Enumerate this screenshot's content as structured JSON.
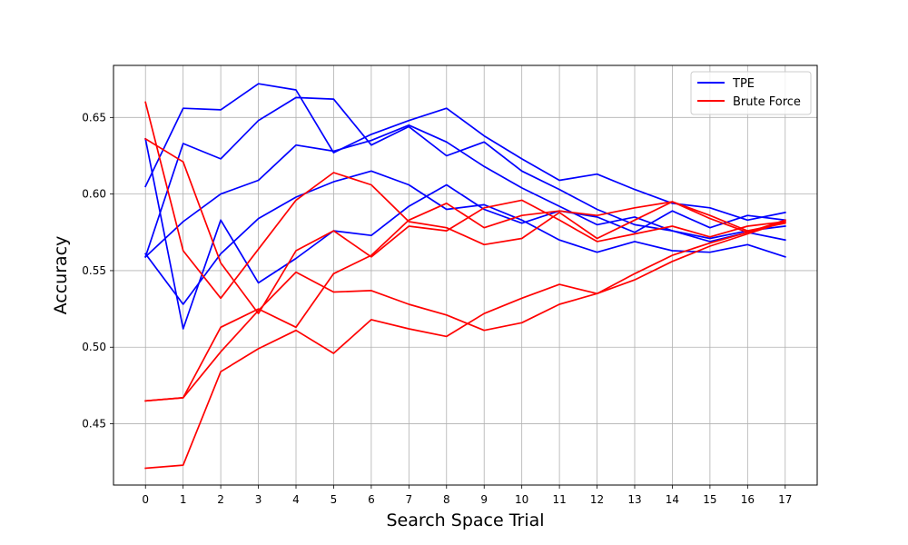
{
  "chart_data": {
    "type": "line",
    "xlabel": "Search Space Trial",
    "ylabel": "Accuracy",
    "x": [
      0,
      1,
      2,
      3,
      4,
      5,
      6,
      7,
      8,
      9,
      10,
      11,
      12,
      13,
      14,
      15,
      16,
      17
    ],
    "xlim": [
      -0.85,
      17.85
    ],
    "ylim": [
      0.41,
      0.684
    ],
    "yticks": [
      0.45,
      0.5,
      0.55,
      0.6,
      0.65
    ],
    "yticklabels": [
      "0.45",
      "0.50",
      "0.55",
      "0.60",
      "0.65"
    ],
    "grid": true,
    "legend_position": "top-right",
    "legend": [
      {
        "label": "TPE",
        "color": "#0000ff"
      },
      {
        "label": "Brute Force",
        "color": "#ff0000"
      }
    ],
    "series": [
      {
        "group": "TPE",
        "color": "#0000ff",
        "values": [
          0.605,
          0.656,
          0.655,
          0.672,
          0.668,
          0.627,
          0.639,
          0.648,
          0.656,
          0.638,
          0.623,
          0.609,
          0.613,
          0.603,
          0.594,
          0.591,
          0.583,
          0.588
        ]
      },
      {
        "group": "TPE",
        "color": "#0000ff",
        "values": [
          0.559,
          0.633,
          0.623,
          0.648,
          0.663,
          0.662,
          0.632,
          0.644,
          0.625,
          0.634,
          0.615,
          0.603,
          0.59,
          0.58,
          0.576,
          0.571,
          0.576,
          0.579
        ]
      },
      {
        "group": "TPE",
        "color": "#0000ff",
        "values": [
          0.559,
          0.582,
          0.6,
          0.609,
          0.632,
          0.628,
          0.635,
          0.645,
          0.634,
          0.618,
          0.604,
          0.592,
          0.58,
          0.585,
          0.576,
          0.569,
          0.575,
          0.57
        ]
      },
      {
        "group": "TPE",
        "color": "#0000ff",
        "values": [
          0.636,
          0.512,
          0.583,
          0.542,
          0.558,
          0.576,
          0.573,
          0.592,
          0.606,
          0.59,
          0.581,
          0.589,
          0.585,
          0.575,
          0.589,
          0.578,
          0.586,
          0.583
        ]
      },
      {
        "group": "TPE",
        "color": "#0000ff",
        "values": [
          0.561,
          0.528,
          0.561,
          0.584,
          0.598,
          0.608,
          0.615,
          0.606,
          0.59,
          0.593,
          0.583,
          0.57,
          0.562,
          0.569,
          0.563,
          0.562,
          0.567,
          0.559
        ]
      },
      {
        "group": "Brute Force",
        "color": "#ff0000",
        "values": [
          0.636,
          0.621,
          0.555,
          0.522,
          0.563,
          0.576,
          0.559,
          0.579,
          0.576,
          0.591,
          0.596,
          0.583,
          0.569,
          0.574,
          0.579,
          0.572,
          0.579,
          0.582
        ]
      },
      {
        "group": "Brute Force",
        "color": "#ff0000",
        "values": [
          0.66,
          0.563,
          0.532,
          0.564,
          0.596,
          0.614,
          0.606,
          0.582,
          0.578,
          0.567,
          0.571,
          0.588,
          0.571,
          0.583,
          0.595,
          0.586,
          0.576,
          0.581
        ]
      },
      {
        "group": "Brute Force",
        "color": "#ff0000",
        "values": [
          0.465,
          0.467,
          0.513,
          0.525,
          0.513,
          0.548,
          0.56,
          0.583,
          0.594,
          0.578,
          0.586,
          0.589,
          0.586,
          0.591,
          0.595,
          0.584,
          0.575,
          0.583
        ]
      },
      {
        "group": "Brute Force",
        "color": "#ff0000",
        "values": [
          0.465,
          0.467,
          0.497,
          0.524,
          0.549,
          0.536,
          0.537,
          0.528,
          0.521,
          0.511,
          0.516,
          0.528,
          0.535,
          0.548,
          0.56,
          0.568,
          0.575,
          0.582
        ]
      },
      {
        "group": "Brute Force",
        "color": "#ff0000",
        "values": [
          0.421,
          0.423,
          0.484,
          0.499,
          0.511,
          0.496,
          0.518,
          0.512,
          0.507,
          0.522,
          0.532,
          0.541,
          0.535,
          0.544,
          0.556,
          0.566,
          0.574,
          0.582
        ]
      }
    ]
  }
}
